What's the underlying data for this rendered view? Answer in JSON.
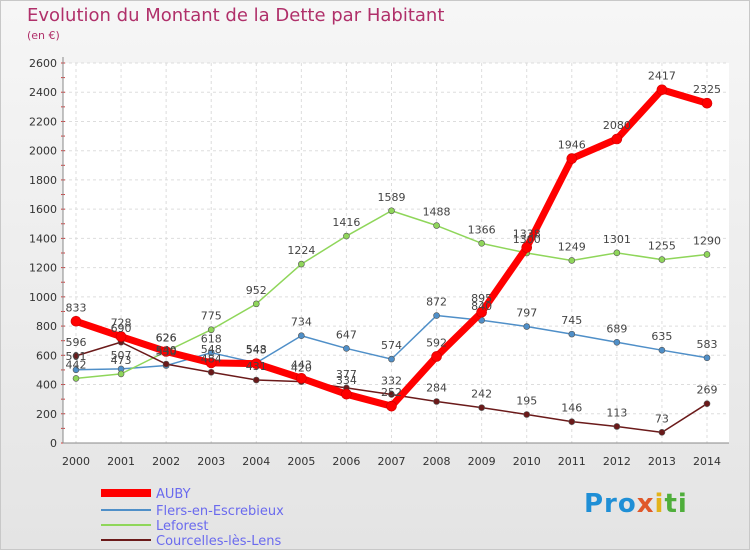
{
  "chart_data": {
    "type": "line",
    "title": "Evolution du Montant de la Dette par Habitant",
    "subtitle": "(en €)",
    "x": [
      "2000",
      "2001",
      "2002",
      "2003",
      "2004",
      "2005",
      "2006",
      "2007",
      "2008",
      "2009",
      "2010",
      "2011",
      "2012",
      "2013",
      "2014"
    ],
    "ylim": [
      0,
      2600
    ],
    "yticks": [
      0,
      200,
      400,
      600,
      800,
      1000,
      1200,
      1400,
      1600,
      1800,
      2000,
      2200,
      2400,
      2600
    ],
    "grid": true,
    "legend_position": "bottom-left",
    "series": [
      {
        "name": "AUBY",
        "color": "#ff0000",
        "values": [
          833,
          728,
          626,
          548,
          543,
          443,
          334,
          252,
          592,
          895,
          1338,
          1946,
          2080,
          2417,
          2325
        ]
      },
      {
        "name": "Flers-en-Escrebieux",
        "color": "#4f8fc8",
        "values": [
          501,
          507,
          530,
          618,
          548,
          734,
          647,
          574,
          872,
          840,
          797,
          745,
          689,
          635,
          583
        ]
      },
      {
        "name": "Leforest",
        "color": "#8fd65a",
        "values": [
          442,
          473,
          626,
          775,
          952,
          1224,
          1416,
          1589,
          1488,
          1366,
          1300,
          1249,
          1301,
          1255,
          1290
        ]
      },
      {
        "name": "Courcelles-lès-Lens",
        "color": "#6b1a1a",
        "values": [
          596,
          690,
          540,
          484,
          431,
          420,
          377,
          332,
          284,
          242,
          195,
          146,
          113,
          73,
          269
        ]
      }
    ]
  },
  "logo": {
    "p1": "Pro",
    "p2": "x",
    "p3": "i",
    "p4": "ti"
  }
}
